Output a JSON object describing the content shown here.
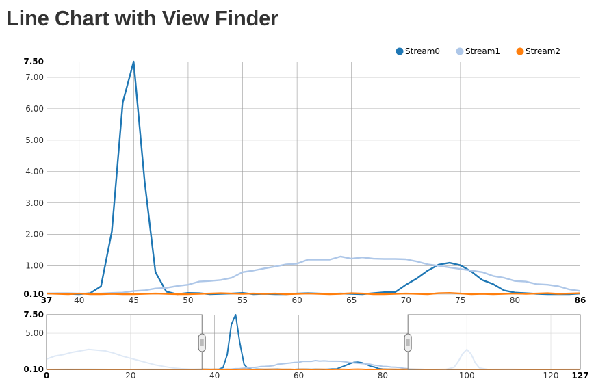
{
  "page": {
    "title": "Line Chart with View Finder"
  },
  "chart_data": {
    "type": "line",
    "title": "Line Chart with View Finder",
    "legend": {
      "placement": "top-right",
      "items": [
        "Stream0",
        "Stream1",
        "Stream2"
      ]
    },
    "colors": {
      "Stream0": "#1f77b4",
      "Stream1": "#aec7e8",
      "Stream2": "#ff7f0e"
    },
    "focus": {
      "xlim": [
        37,
        86
      ],
      "ylim": [
        0.1,
        7.5
      ],
      "x_ticks": [
        40,
        45,
        50,
        55,
        60,
        65,
        70,
        75,
        80
      ],
      "y_ticks": [
        1.0,
        2.0,
        3.0,
        4.0,
        5.0,
        6.0,
        7.0
      ],
      "x_end_labels": [
        "37",
        "86"
      ],
      "y_end_labels": [
        "0.10",
        "7.50"
      ],
      "grid": true
    },
    "context": {
      "xlim": [
        0,
        127
      ],
      "ylim": [
        0.1,
        7.5
      ],
      "x_ticks": [
        20,
        40,
        60,
        80,
        100,
        120
      ],
      "y_ticks": [
        5.0
      ],
      "x_end_labels": [
        "0",
        "127"
      ],
      "y_end_labels": [
        "0.10",
        "7.50"
      ],
      "brush": [
        37,
        86
      ],
      "grid": true
    },
    "series": [
      {
        "name": "Stream0",
        "x": [
          0,
          5,
          10,
          15,
          20,
          25,
          30,
          35,
          36,
          37,
          38,
          39,
          40,
          41,
          42,
          43,
          44,
          45,
          46,
          47,
          48,
          49,
          50,
          51,
          52,
          53,
          54,
          55,
          56,
          57,
          58,
          59,
          60,
          61,
          62,
          63,
          64,
          65,
          66,
          67,
          68,
          69,
          70,
          71,
          72,
          73,
          74,
          75,
          76,
          77,
          78,
          79,
          80,
          81,
          82,
          83,
          84,
          85,
          86,
          90,
          95,
          100,
          105,
          110,
          115,
          120,
          127
        ],
        "values": [
          0.1,
          0.1,
          0.11,
          0.1,
          0.1,
          0.1,
          0.1,
          0.1,
          0.11,
          0.12,
          0.12,
          0.11,
          0.1,
          0.13,
          0.35,
          2.1,
          6.2,
          7.5,
          3.7,
          0.8,
          0.18,
          0.1,
          0.14,
          0.13,
          0.1,
          0.11,
          0.12,
          0.14,
          0.1,
          0.11,
          0.1,
          0.1,
          0.12,
          0.13,
          0.12,
          0.11,
          0.12,
          0.11,
          0.1,
          0.13,
          0.16,
          0.16,
          0.4,
          0.6,
          0.85,
          1.04,
          1.1,
          1.02,
          0.82,
          0.55,
          0.42,
          0.22,
          0.15,
          0.13,
          0.11,
          0.1,
          0.1,
          0.1,
          0.12,
          0.1,
          0.1,
          0.1,
          0.1,
          0.1,
          0.1,
          0.1,
          0.1
        ]
      },
      {
        "name": "Stream1",
        "x": [
          0,
          2,
          4,
          6,
          8,
          10,
          12,
          14,
          16,
          18,
          20,
          22,
          24,
          26,
          28,
          30,
          32,
          34,
          36,
          37,
          38,
          39,
          40,
          41,
          42,
          43,
          44,
          45,
          46,
          47,
          48,
          49,
          50,
          51,
          52,
          53,
          54,
          55,
          56,
          57,
          58,
          59,
          60,
          61,
          62,
          63,
          64,
          65,
          66,
          67,
          68,
          69,
          70,
          71,
          72,
          73,
          74,
          75,
          76,
          77,
          78,
          79,
          80,
          81,
          82,
          83,
          84,
          85,
          86,
          90,
          95,
          97,
          98,
          99,
          100,
          101,
          102,
          103,
          105,
          110,
          115,
          120,
          127
        ],
        "values": [
          1.5,
          1.9,
          2.1,
          2.4,
          2.6,
          2.8,
          2.7,
          2.6,
          2.3,
          1.9,
          1.6,
          1.3,
          1.0,
          0.7,
          0.5,
          0.3,
          0.2,
          0.15,
          0.12,
          0.12,
          0.13,
          0.13,
          0.12,
          0.12,
          0.12,
          0.14,
          0.15,
          0.2,
          0.22,
          0.28,
          0.3,
          0.36,
          0.4,
          0.5,
          0.52,
          0.55,
          0.62,
          0.8,
          0.85,
          0.92,
          0.98,
          1.05,
          1.07,
          1.2,
          1.2,
          1.2,
          1.3,
          1.23,
          1.27,
          1.23,
          1.22,
          1.22,
          1.21,
          1.14,
          1.05,
          1.0,
          0.95,
          0.9,
          0.85,
          0.8,
          0.68,
          0.62,
          0.52,
          0.5,
          0.42,
          0.4,
          0.35,
          0.25,
          0.2,
          0.1,
          0.1,
          0.4,
          1.2,
          2.2,
          2.8,
          2.2,
          1.0,
          0.3,
          0.1,
          0.1,
          0.1,
          0.1,
          0.1
        ]
      },
      {
        "name": "Stream2",
        "x": [
          0,
          5,
          10,
          15,
          20,
          25,
          30,
          35,
          36,
          37,
          38,
          39,
          40,
          41,
          42,
          43,
          44,
          45,
          46,
          47,
          48,
          49,
          50,
          51,
          52,
          53,
          54,
          55,
          56,
          57,
          58,
          59,
          60,
          61,
          62,
          63,
          64,
          65,
          66,
          67,
          68,
          69,
          70,
          71,
          72,
          73,
          74,
          75,
          76,
          77,
          78,
          79,
          80,
          81,
          82,
          83,
          84,
          85,
          86,
          90,
          95,
          100,
          105,
          110,
          115,
          120,
          127
        ],
        "values": [
          0.1,
          0.11,
          0.1,
          0.1,
          0.1,
          0.11,
          0.1,
          0.1,
          0.11,
          0.12,
          0.11,
          0.1,
          0.12,
          0.1,
          0.1,
          0.11,
          0.1,
          0.1,
          0.11,
          0.12,
          0.11,
          0.1,
          0.1,
          0.11,
          0.12,
          0.13,
          0.12,
          0.11,
          0.12,
          0.11,
          0.12,
          0.1,
          0.11,
          0.12,
          0.11,
          0.1,
          0.11,
          0.13,
          0.12,
          0.1,
          0.1,
          0.11,
          0.12,
          0.11,
          0.1,
          0.13,
          0.14,
          0.12,
          0.1,
          0.11,
          0.1,
          0.11,
          0.12,
          0.11,
          0.12,
          0.13,
          0.11,
          0.12,
          0.13,
          0.1,
          0.11,
          0.1,
          0.1,
          0.11,
          0.1,
          0.1,
          0.11
        ]
      }
    ]
  }
}
